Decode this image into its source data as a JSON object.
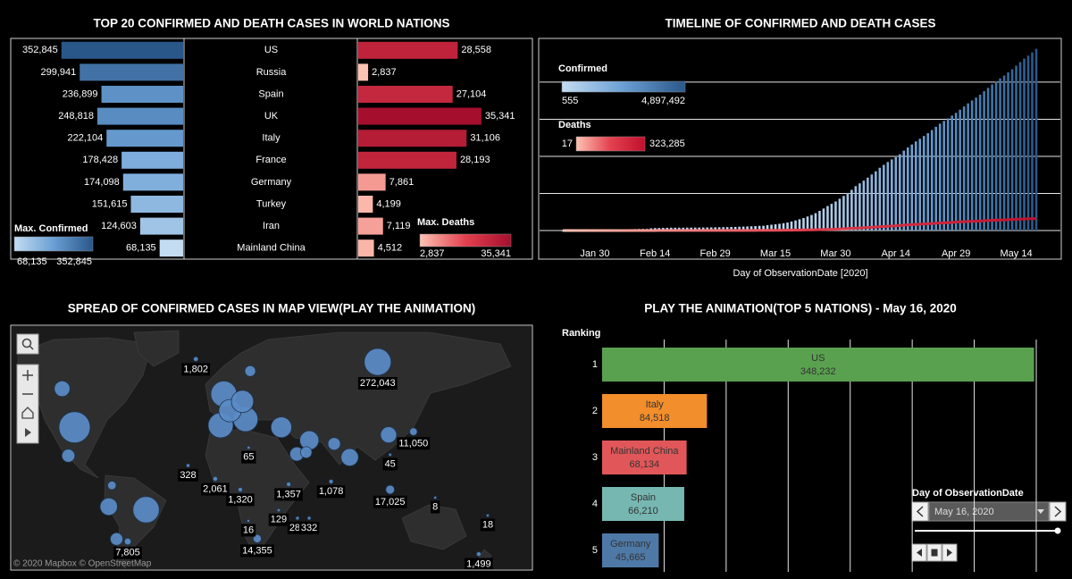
{
  "chart_data": [
    {
      "type": "butterfly_bar",
      "title": "TOP 20 CONFIRMED AND DEATH CASES IN WORLD NATIONS",
      "categories": [
        "US",
        "Russia",
        "Spain",
        "UK",
        "Italy",
        "France",
        "Germany",
        "Turkey",
        "Iran",
        "Mainland China"
      ],
      "xlim": [
        0,
        500000
      ],
      "x2lim": [
        0,
        50000
      ],
      "series": [
        {
          "name": "Max. Confirmed",
          "colors": [
            "#c4dcf2",
            "#6a9fd4",
            "#2a5789"
          ],
          "legend": [
            {
              "value": 68135,
              "label": "68,135"
            },
            {
              "value": 352845,
              "label": "352,845"
            }
          ],
          "values": [
            352845,
            299941,
            236899,
            248818,
            222104,
            178428,
            174098,
            151615,
            124603,
            68135
          ],
          "value_labels": [
            "352,845",
            "299,941",
            "236,899",
            "248,818",
            "222,104",
            "178,428",
            "174,098",
            "151,615",
            "124,603",
            "68,135"
          ]
        },
        {
          "name": "Max. Deaths",
          "axis": "x2",
          "colors": [
            "#fcc2b2",
            "#e3404f",
            "#a50f2d"
          ],
          "legend": [
            {
              "value": 2837,
              "label": "2,837"
            },
            {
              "value": 35341,
              "label": "35,341"
            }
          ],
          "values": [
            28558,
            2837,
            27104,
            35341,
            31106,
            28193,
            7861,
            4199,
            7119,
            4512
          ],
          "value_labels": [
            "28,558",
            "2,837",
            "27,104",
            "35,341",
            "31,106",
            "28,193",
            "7,861",
            "4,199",
            "7,119",
            "4,512"
          ]
        }
      ]
    },
    {
      "type": "bar",
      "title": "TIMELINE OF CONFIRMED AND DEATH CASES",
      "xlabel": "Day of ObservationDate [2020]",
      "x": [
        null,
        null,
        null,
        null,
        null,
        null,
        null,
        null,
        "Jan 30",
        null,
        null,
        null,
        null,
        null,
        null,
        null,
        null,
        null,
        null,
        null,
        null,
        null,
        null,
        "Feb 14",
        null,
        null,
        null,
        null,
        null,
        null,
        null,
        null,
        null,
        null,
        null,
        null,
        null,
        null,
        "Feb 29",
        null,
        null,
        null,
        null,
        null,
        null,
        null,
        null,
        null,
        null,
        null,
        null,
        null,
        null,
        "Mar 15",
        null,
        null,
        null,
        null,
        null,
        null,
        null,
        null,
        null,
        null,
        null,
        null,
        null,
        null,
        "Mar 30",
        null,
        null,
        null,
        null,
        null,
        null,
        null,
        null,
        null,
        null,
        null,
        null,
        null,
        null,
        "Apr 14",
        null,
        null,
        null,
        null,
        null,
        null,
        null,
        null,
        null,
        null,
        null,
        null,
        null,
        null,
        "Apr 29",
        null,
        null,
        null,
        null,
        null,
        null,
        null,
        null,
        null,
        null,
        null,
        null,
        null,
        null,
        "May 14",
        null,
        null,
        null,
        null,
        null
      ],
      "ylim": [
        0,
        5130000
      ],
      "yticks": [
        0,
        1000000,
        2000000,
        3000000,
        4000000
      ],
      "grid": true,
      "series": [
        {
          "name": "Confirmed",
          "type": "bar",
          "colors": [
            "#c4dcf2",
            "#6a9fd4",
            "#2a5789"
          ],
          "legend": [
            555,
            {
              "value": 4897492,
              "label": "4,897,492"
            }
          ],
          "values": [
            555,
            654,
            941,
            1434,
            2118,
            2927,
            5578,
            6166,
            8234,
            9927,
            12038,
            16787,
            19881,
            23892,
            27635,
            30794,
            34391,
            37120,
            40150,
            42762,
            44802,
            45221,
            60368,
            66885,
            69030,
            71224,
            73258,
            75136,
            75639,
            76197,
            76819,
            78572,
            78958,
            79561,
            80406,
            81388,
            82746,
            84112,
            86011,
            88369,
            90306,
            92840,
            95120,
            97886,
            101801,
            105847,
            109821,
            113590,
            118620,
            125875,
            128352,
            145205,
            156101,
            167454,
            181574,
            197102,
            214821,
            242570,
            272208,
            304507,
            336953,
            378235,
            418045,
            467653,
            529591,
            593291,
            660706,
            720117,
            782365,
            857487,
            932605,
            1013466,
            1095917,
            1197405,
            1272115,
            1345101,
            1426096,
            1511104,
            1595350,
            1691719,
            1771514,
            1846680,
            1917320,
            1976192,
            2056054,
            2152437,
            2240190,
            2317758,
            2401378,
            2472259,
            2549123,
            2624000,
            2708885,
            2795735,
            2881140,
            2955033,
            3023722,
            3097229,
            3172287,
            3256846,
            3343777,
            3427584,
            3506729,
            3583055,
            3662691,
            3755341,
            3845718,
            3938064,
            4024009,
            4101699,
            4177502,
            4261747,
            4347018,
            4442163,
            4542347,
            4634068,
            4713620,
            4801943,
            4897492
          ]
        },
        {
          "name": "Deaths",
          "type": "line",
          "colors": [
            "#fcc2b2",
            "#e3404f",
            "#c0102c"
          ],
          "legend": [
            17,
            {
              "value": 323285,
              "label": "323,285"
            }
          ],
          "values": [
            17,
            18,
            26,
            42,
            56,
            82,
            131,
            133,
            171,
            213,
            259,
            362,
            426,
            492,
            564,
            634,
            719,
            806,
            906,
            1013,
            1113,
            1118,
            1371,
            1523,
            1666,
            1770,
            1868,
            2007,
            2122,
            2247,
            2251,
            2458,
            2469,
            2629,
            2708,
            2770,
            2814,
            2872,
            2941,
            2996,
            3085,
            3160,
            3254,
            3348,
            3460,
            3558,
            3803,
            3996,
            4262,
            4615,
            4720,
            5404,
            5819,
            6440,
            7126,
            7905,
            8733,
            9867,
            11299,
            12973,
            14651,
            16505,
            18625,
            21181,
            23970,
            27198,
            30652,
            33925,
            37582,
            42107,
            47180,
            53190,
            58787,
            64606,
            69374,
            74565,
            81865,
            88338,
            95455,
            102525,
            108503,
            114091,
            119481,
            125983,
            134176,
            143800,
            153822,
            159510,
            165044,
            169986,
            176583,
            183066,
            190858,
            197159,
            202846,
            206544,
            211167,
            217153,
            227638,
            233388,
            238650,
            243808,
            247470,
            251537,
            257239,
            263855,
            269567,
            274898,
            279311,
            282709,
            286330,
            291942,
            297197,
            302418,
            307666,
            311781,
            315185,
            318481,
            323285
          ]
        }
      ]
    },
    {
      "type": "bubble_map",
      "title": "SPREAD OF CONFIRMED CASES IN MAP VIEW(PLAY THE ANIMATION)",
      "attribution": "© 2020 Mapbox © OpenStreetMap",
      "color": "#5b8cc7",
      "lon": [
        -98,
        -52,
        97,
        -2,
        -4,
        12,
        2,
        10,
        35,
        53,
        79,
        -76,
        -106,
        104,
        45,
        -102,
        69,
        -71,
        51,
        15,
        -74,
        -20,
        120,
        14,
        105,
        -25,
        -7.5,
        39.7,
        67,
        8.6,
        105,
        134,
        33.3,
        45.4,
        52.9,
        13.8,
        19.5,
        167.8,
        -63.8,
        162
      ],
      "lat": [
        39,
        -12,
        64.7,
        54,
        40,
        43,
        47,
        51,
        39,
        32,
        22,
        -10,
        56,
        35,
        24,
        23,
        30,
        -30,
        25,
        62,
        4,
        65.5,
        36.7,
        27.8,
        23.6,
        16.9,
        8.3,
        4.7,
        6.5,
        1.2,
        1.2,
        -4.1,
        -12.3,
        -17.4,
        -17.4,
        -19.1,
        -29.8,
        -15.7,
        -31.4,
        -38.2
      ],
      "values": [
        380000,
        260000,
        272043,
        250000,
        232000,
        226000,
        180000,
        177000,
        151000,
        124000,
        100000,
        100000,
        78000,
        84000,
        59000,
        50000,
        45000,
        45000,
        35000,
        30000,
        16000,
        1802,
        11050,
        65,
        45,
        328,
        2061,
        1357,
        1078,
        1320,
        17025,
        8,
        129,
        283,
        332,
        16,
        14355,
        18,
        7805,
        1499
      ],
      "value_labels": [
        null,
        null,
        "272,043",
        null,
        null,
        null,
        null,
        null,
        null,
        null,
        null,
        null,
        null,
        null,
        null,
        null,
        null,
        null,
        null,
        null,
        null,
        "1,802",
        "11,050",
        "65",
        "45",
        "328",
        "2,061",
        "1,357",
        "1,078",
        "1,320",
        "17,025",
        "8",
        "129",
        "283",
        "332",
        "16",
        "14,355",
        "18",
        "7,805",
        "1,499"
      ]
    },
    {
      "type": "hbar",
      "title": "PLAY THE ANIMATION(TOP 5 NATIONS) - May 16, 2020",
      "ylabel": "Ranking",
      "categories": [
        "1",
        "2",
        "3",
        "4",
        "5"
      ],
      "labels": [
        "US",
        "Italy",
        "Mainland China",
        "Spain",
        "Germany"
      ],
      "values": [
        348232,
        84518,
        68134,
        66210,
        45665
      ],
      "value_labels": [
        "348,232",
        "84,518",
        "68,134",
        "66,210",
        "45,665"
      ],
      "colors": [
        "#59a14f",
        "#f28e2b",
        "#e15759",
        "#76b7b2",
        "#4e79a7"
      ],
      "xlim": [
        0,
        350000
      ],
      "xticks": [
        50000,
        100000,
        150000,
        200000,
        250000,
        300000,
        350000
      ],
      "grid": true,
      "control": {
        "label": "Day of ObservationDate",
        "value": "May 16, 2020"
      }
    }
  ]
}
